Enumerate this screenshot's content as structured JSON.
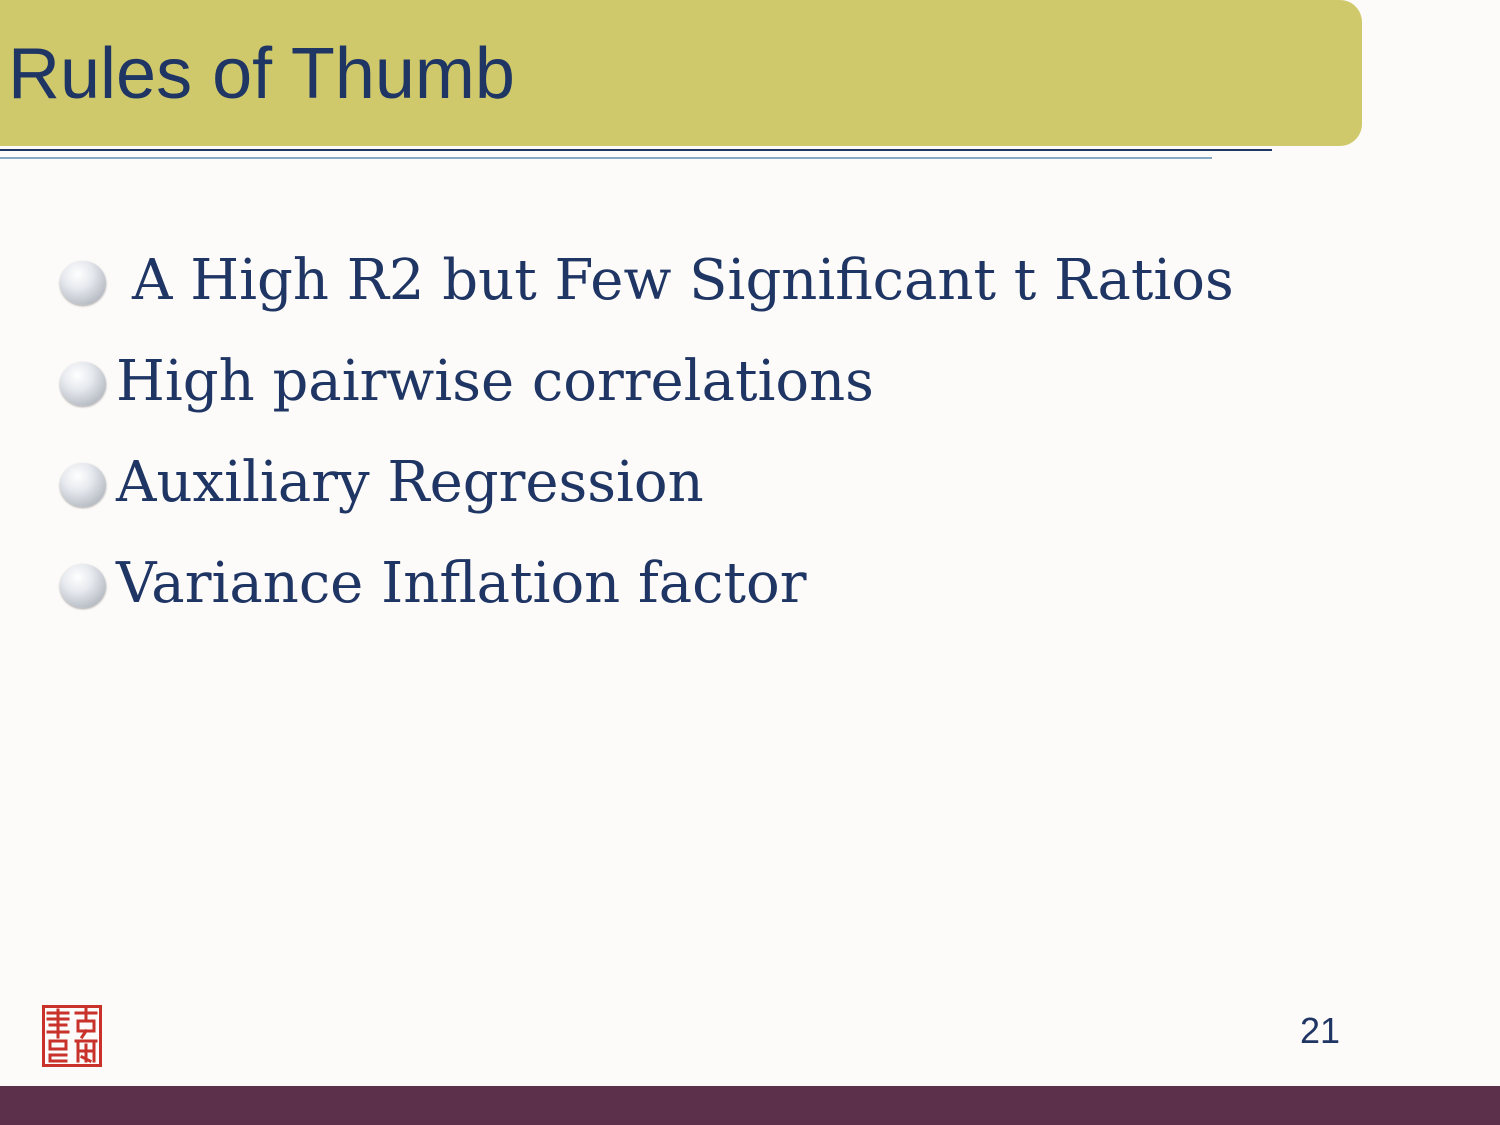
{
  "slide": {
    "title": "Rules of Thumb",
    "page_number": "21"
  },
  "bullets": [
    {
      "text": "A High R2 but Few Significant t Ratios"
    },
    {
      "text": "High pairwise correlations"
    },
    {
      "text": "Auxiliary Regression"
    },
    {
      "text": "Variance Inflation factor"
    }
  ],
  "icons": {
    "bullet": "gray-sphere-bullet-icon",
    "logo": "red-seal-stamp-logo"
  },
  "colors": {
    "title_bar": "#cfc96c",
    "title_text": "#1f3564",
    "footer_bar": "#5c2f4a",
    "seal_red": "#c8322a"
  }
}
